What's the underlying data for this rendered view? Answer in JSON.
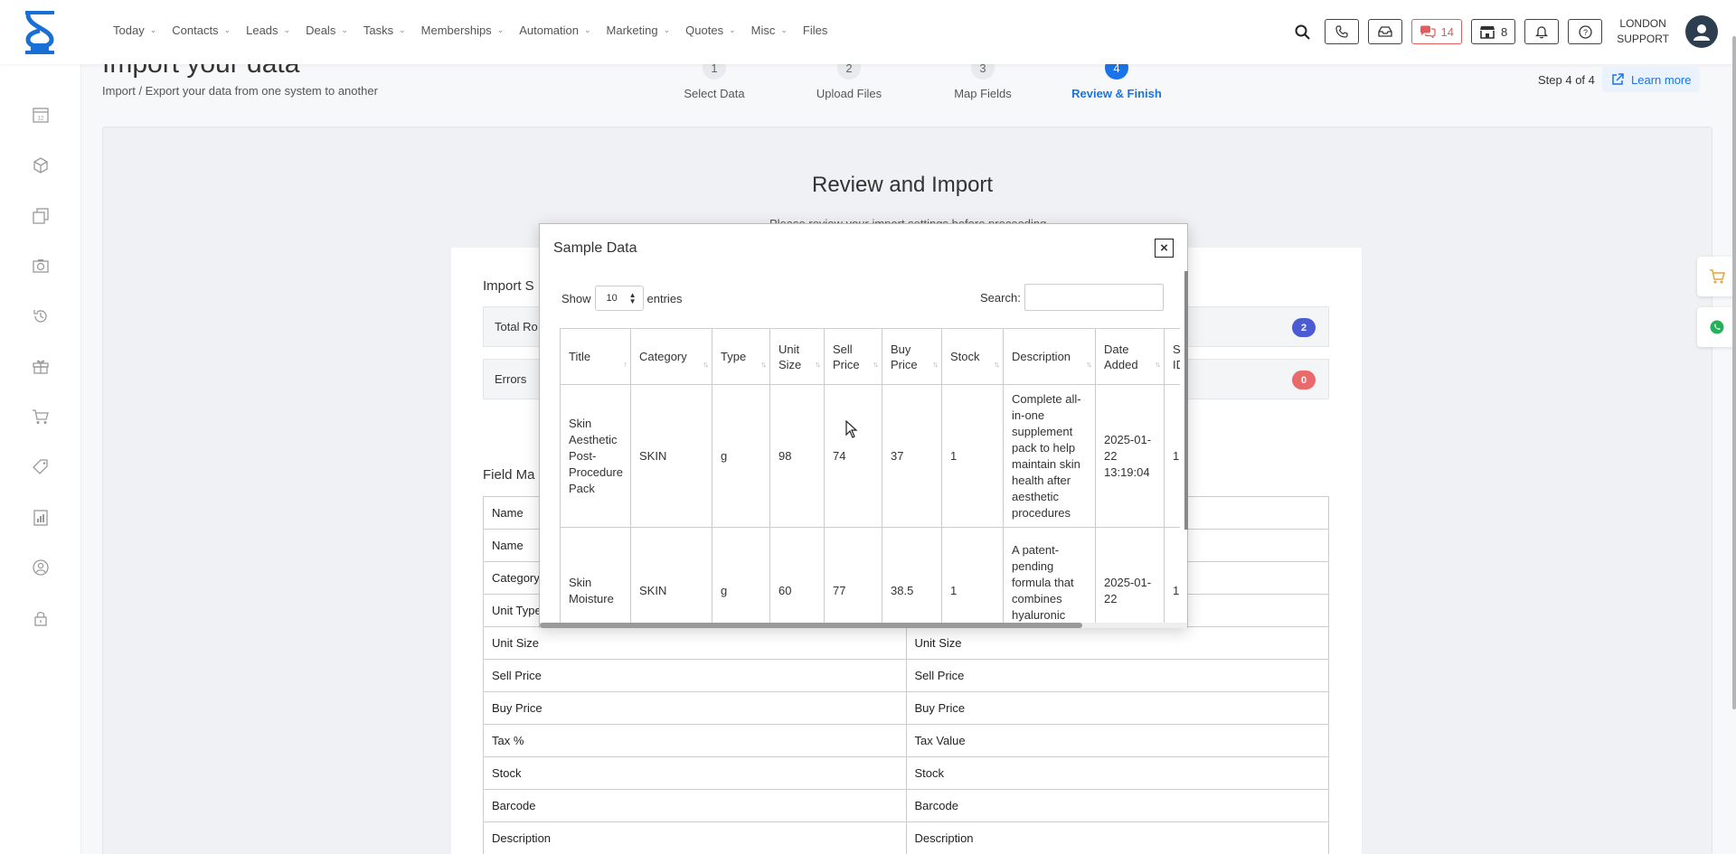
{
  "nav": {
    "items": [
      {
        "label": "Today",
        "dropdown": true
      },
      {
        "label": "Contacts",
        "dropdown": true
      },
      {
        "label": "Leads",
        "dropdown": true
      },
      {
        "label": "Deals",
        "dropdown": true
      },
      {
        "label": "Tasks",
        "dropdown": true
      },
      {
        "label": "Memberships",
        "dropdown": true
      },
      {
        "label": "Automation",
        "dropdown": true
      },
      {
        "label": "Marketing",
        "dropdown": true
      },
      {
        "label": "Quotes",
        "dropdown": true
      },
      {
        "label": "Misc",
        "dropdown": true
      },
      {
        "label": "Files",
        "dropdown": false
      }
    ],
    "chat_count": "14",
    "store_count": "8",
    "user_line1": "LONDON",
    "user_line2": "SUPPORT"
  },
  "page": {
    "title": "Import your data",
    "subtitle": "Import / Export your data from one system to another",
    "step_count": "Step 4 of 4",
    "learn_more": "Learn more",
    "steps": [
      {
        "num": "1",
        "label": "Select Data"
      },
      {
        "num": "2",
        "label": "Upload Files"
      },
      {
        "num": "3",
        "label": "Map Fields"
      },
      {
        "num": "4",
        "label": "Review & Finish"
      }
    ],
    "active_step": 4
  },
  "review": {
    "title": "Review and Import",
    "subtitle": "Please review your import settings before proceeding",
    "import_summary_label": "Import S",
    "total_rows_label": "Total Ro",
    "total_rows_value": "2",
    "errors_label": "Errors",
    "errors_value": "0",
    "field_mapping_label": "Field Ma",
    "mapping_rows": [
      [
        "Name",
        ""
      ],
      [
        "Name",
        ""
      ],
      [
        "Category",
        ""
      ],
      [
        "Unit Type",
        ""
      ],
      [
        "Unit Size",
        "Unit Size"
      ],
      [
        "Sell Price",
        "Sell Price"
      ],
      [
        "Buy Price",
        "Buy Price"
      ],
      [
        "Tax %",
        "Tax Value"
      ],
      [
        "Stock",
        "Stock"
      ],
      [
        "Barcode",
        "Barcode"
      ],
      [
        "Description",
        "Description"
      ]
    ]
  },
  "modal": {
    "title": "Sample Data",
    "close": "×",
    "show_label": "Show",
    "entries_value": "10",
    "entries_label": "entries",
    "search_label": "Search:",
    "columns": [
      "Title",
      "Category",
      "Type",
      "Unit Size",
      "Sell Price",
      "Buy Price",
      "Stock",
      "Description",
      "Date Added",
      "Sc ID"
    ],
    "rows": [
      [
        "Skin Aesthetic Post-Procedure Pack",
        "SKIN",
        "g",
        "98",
        "74",
        "37",
        "1",
        "Complete all-in-one supplement pack to help maintain skin health after aesthetic procedures",
        "2025-01-22 13:19:04",
        "1"
      ],
      [
        "Skin Moisture",
        "SKIN",
        "g",
        "60",
        "77",
        "38.5",
        "1",
        "A patent-pending formula that combines hyaluronic acid with",
        "2025-01-22",
        "1"
      ]
    ]
  },
  "colors": {
    "accent": "#1a73e8",
    "badge_blue": "#4a5bd4",
    "badge_red": "#e86a6a",
    "chat_red": "#e45c5c"
  }
}
